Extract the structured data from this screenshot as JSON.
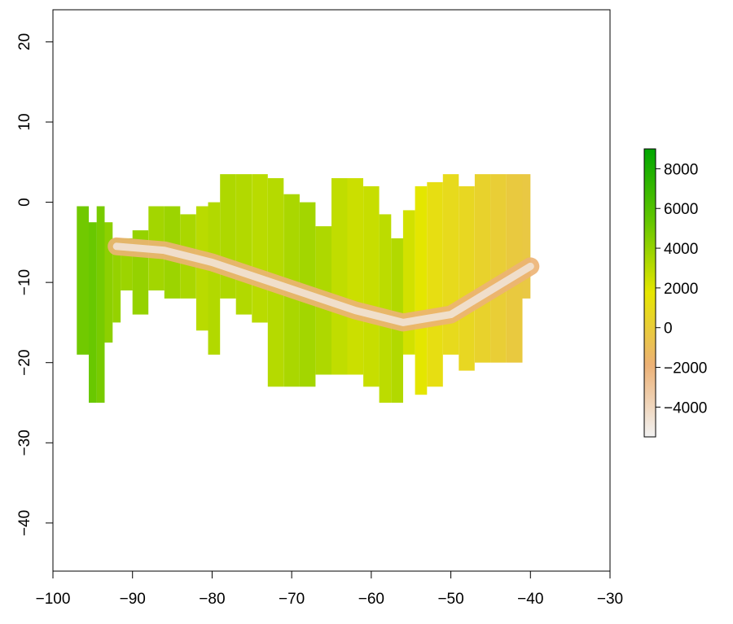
{
  "chart_data": {
    "type": "heatmap",
    "title": "",
    "xlabel": "",
    "ylabel": "",
    "xlim": [
      -100,
      -30
    ],
    "ylim": [
      -46,
      24
    ],
    "x_ticks": [
      -100,
      -90,
      -80,
      -70,
      -60,
      -50,
      -40,
      -30
    ],
    "x_tick_labels": [
      "−100",
      "−90",
      "−80",
      "−70",
      "−60",
      "−50",
      "−40",
      "−30"
    ],
    "y_ticks": [
      -40,
      -30,
      -20,
      -10,
      0,
      10,
      20
    ],
    "y_tick_labels": [
      "−40",
      "−30",
      "−20",
      "−10",
      "0",
      "10",
      "20"
    ],
    "grid": false,
    "legend": "right",
    "colorbar": {
      "min": -5500,
      "max": 9000,
      "ticks": [
        -4000,
        -2000,
        0,
        2000,
        4000,
        6000,
        8000
      ],
      "tick_labels": [
        "−4000",
        "−2000",
        "0",
        "2000",
        "4000",
        "6000",
        "8000"
      ],
      "colors": [
        "#f2f2f2",
        "#ecb176",
        "#e6e600",
        "#63c600",
        "#00a600"
      ]
    },
    "raster_extent": {
      "lon": [
        -97,
        -40
      ],
      "lat": [
        -25,
        3.5
      ]
    },
    "blocks": [
      {
        "lon": [
          -97,
          -95.5
        ],
        "lat": [
          -19,
          -0.5
        ],
        "value": 5000
      },
      {
        "lon": [
          -95.5,
          -94.5
        ],
        "lat": [
          -25,
          -2.5
        ],
        "value": 5200
      },
      {
        "lon": [
          -94.5,
          -93.5
        ],
        "lat": [
          -25,
          -0.5
        ],
        "value": 4800
      },
      {
        "lon": [
          -93.5,
          -92.5
        ],
        "lat": [
          -17.5,
          -2.5
        ],
        "value": 4200
      },
      {
        "lon": [
          -92.5,
          -91.5
        ],
        "lat": [
          -15,
          -4.5
        ],
        "value": 4000
      },
      {
        "lon": [
          -91.5,
          -90
        ],
        "lat": [
          -11,
          -4.5
        ],
        "value": 3800
      },
      {
        "lon": [
          -90,
          -88
        ],
        "lat": [
          -14,
          -3.5
        ],
        "value": 4000
      },
      {
        "lon": [
          -88,
          -86
        ],
        "lat": [
          -11,
          -0.5
        ],
        "value": 3600
      },
      {
        "lon": [
          -86,
          -84
        ],
        "lat": [
          -12,
          -0.5
        ],
        "value": 3800
      },
      {
        "lon": [
          -84,
          -82
        ],
        "lat": [
          -12,
          -1.5
        ],
        "value": 3400
      },
      {
        "lon": [
          -82,
          -80.5
        ],
        "lat": [
          -16,
          -0.5
        ],
        "value": 3000
      },
      {
        "lon": [
          -80.5,
          -79
        ],
        "lat": [
          -19,
          0
        ],
        "value": 3200
      },
      {
        "lon": [
          -79,
          -77
        ],
        "lat": [
          -12,
          3.5
        ],
        "value": 3300
      },
      {
        "lon": [
          -77,
          -75
        ],
        "lat": [
          -14,
          3.5
        ],
        "value": 3200
      },
      {
        "lon": [
          -75,
          -73
        ],
        "lat": [
          -15,
          3.5
        ],
        "value": 3000
      },
      {
        "lon": [
          -73,
          -71
        ],
        "lat": [
          -23,
          3
        ],
        "value": 3100
      },
      {
        "lon": [
          -71,
          -69
        ],
        "lat": [
          -23,
          1
        ],
        "value": 3400
      },
      {
        "lon": [
          -69,
          -67
        ],
        "lat": [
          -23,
          0
        ],
        "value": 3600
      },
      {
        "lon": [
          -67,
          -65
        ],
        "lat": [
          -21.5,
          -3
        ],
        "value": 3300
      },
      {
        "lon": [
          -65,
          -63
        ],
        "lat": [
          -21.5,
          3
        ],
        "value": 2800
      },
      {
        "lon": [
          -63,
          -61
        ],
        "lat": [
          -21.5,
          3
        ],
        "value": 2500
      },
      {
        "lon": [
          -61,
          -59
        ],
        "lat": [
          -23,
          2
        ],
        "value": 2600
      },
      {
        "lon": [
          -59,
          -57.5
        ],
        "lat": [
          -25,
          -1.5
        ],
        "value": 2900
      },
      {
        "lon": [
          -57.5,
          -56
        ],
        "lat": [
          -25,
          -4.5
        ],
        "value": 3200
      },
      {
        "lon": [
          -56,
          -54.5
        ],
        "lat": [
          -19,
          -1
        ],
        "value": 2300
      },
      {
        "lon": [
          -54.5,
          -53
        ],
        "lat": [
          -24,
          2
        ],
        "value": 1800
      },
      {
        "lon": [
          -53,
          -51
        ],
        "lat": [
          -23,
          2.5
        ],
        "value": 1200
      },
      {
        "lon": [
          -51,
          -49
        ],
        "lat": [
          -19,
          3.5
        ],
        "value": 900
      },
      {
        "lon": [
          -49,
          -47
        ],
        "lat": [
          -21,
          2
        ],
        "value": 700
      },
      {
        "lon": [
          -47,
          -45
        ],
        "lat": [
          -20,
          3.5
        ],
        "value": 400
      },
      {
        "lon": [
          -45,
          -43
        ],
        "lat": [
          -20,
          3.5
        ],
        "value": 100
      },
      {
        "lon": [
          -43,
          -41
        ],
        "lat": [
          -20,
          3.5
        ],
        "value": -200
      },
      {
        "lon": [
          -41,
          -40
        ],
        "lat": [
          -12,
          3.5
        ],
        "value": -300
      }
    ],
    "canyon_floor": [
      {
        "lon": -92,
        "lat": -5.5
      },
      {
        "lon": -86,
        "lat": -6
      },
      {
        "lon": -80,
        "lat": -7.5
      },
      {
        "lon": -74,
        "lat": -9.5
      },
      {
        "lon": -68,
        "lat": -11.5
      },
      {
        "lon": -62,
        "lat": -13.5
      },
      {
        "lon": -56,
        "lat": -15
      },
      {
        "lon": -50,
        "lat": -14
      },
      {
        "lon": -45,
        "lat": -11
      },
      {
        "lon": -40,
        "lat": -8
      }
    ],
    "canyon_value": -4500
  }
}
